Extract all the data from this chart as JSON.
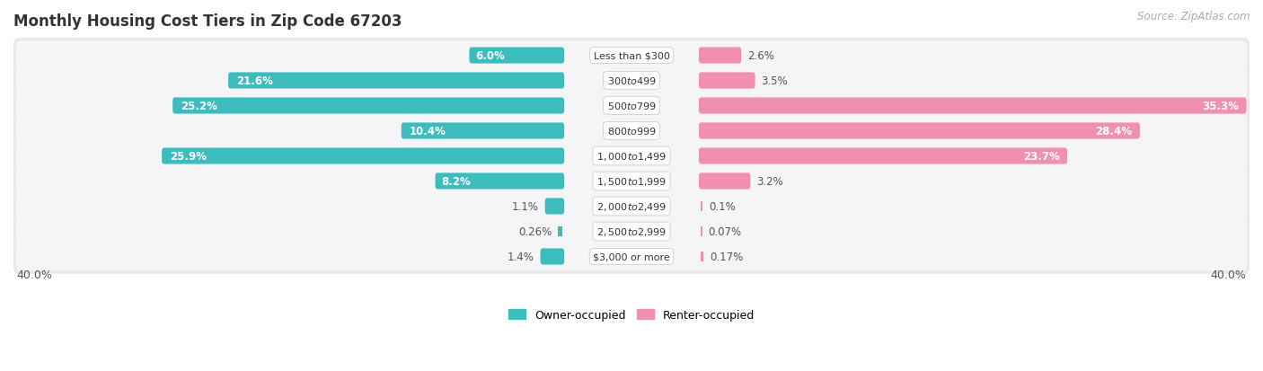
{
  "title": "Monthly Housing Cost Tiers in Zip Code 67203",
  "source": "Source: ZipAtlas.com",
  "categories": [
    "Less than $300",
    "$300 to $499",
    "$500 to $799",
    "$800 to $999",
    "$1,000 to $1,499",
    "$1,500 to $1,999",
    "$2,000 to $2,499",
    "$2,500 to $2,999",
    "$3,000 or more"
  ],
  "owner_values": [
    6.0,
    21.6,
    25.2,
    10.4,
    25.9,
    8.2,
    1.1,
    0.26,
    1.4
  ],
  "renter_values": [
    2.6,
    3.5,
    35.3,
    28.4,
    23.7,
    3.2,
    0.1,
    0.07,
    0.17
  ],
  "owner_color": "#3DBCBE",
  "renter_color": "#F090B0",
  "owner_label": "Owner-occupied",
  "renter_label": "Renter-occupied",
  "axis_label_left": "40.0%",
  "axis_label_right": "40.0%",
  "max_val": 40.0,
  "row_bg_color": "#e8e8ec",
  "title_fontsize": 12,
  "source_fontsize": 8.5,
  "bar_label_fontsize": 8.5,
  "category_fontsize": 8,
  "legend_fontsize": 9
}
